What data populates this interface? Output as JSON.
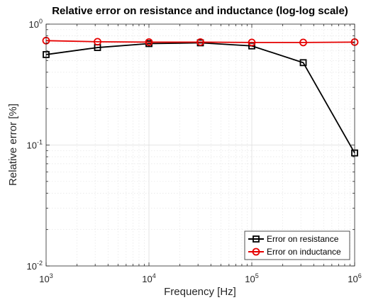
{
  "chart_data": {
    "type": "line",
    "title": "Relative error on resistance and inductance (log-log scale)",
    "xlabel": "Frequency [Hz]",
    "ylabel": "Relative error [%]",
    "xscale": "log",
    "yscale": "log",
    "xlim": [
      1000,
      1000000
    ],
    "ylim": [
      0.01,
      1
    ],
    "grid": true,
    "legend_location": "bottom-right",
    "x_ticks": [
      {
        "base": "10",
        "exp": "3"
      },
      {
        "base": "10",
        "exp": "4"
      },
      {
        "base": "10",
        "exp": "5"
      },
      {
        "base": "10",
        "exp": "6"
      }
    ],
    "y_ticks": [
      {
        "base": "10",
        "exp": "-2"
      },
      {
        "base": "10",
        "exp": "-1"
      },
      {
        "base": "10",
        "exp": "0"
      }
    ],
    "x": [
      1000,
      3162,
      10000,
      31623,
      100000,
      316228,
      1000000
    ],
    "series": [
      {
        "name": "Error on resistance",
        "color": "#000000",
        "marker": "square",
        "values": [
          0.56,
          0.64,
          0.69,
          0.7,
          0.66,
          0.48,
          0.086
        ]
      },
      {
        "name": "Error on inductance",
        "color": "#e60000",
        "marker": "circle",
        "values": [
          0.73,
          0.715,
          0.71,
          0.71,
          0.705,
          0.705,
          0.71
        ]
      }
    ]
  }
}
